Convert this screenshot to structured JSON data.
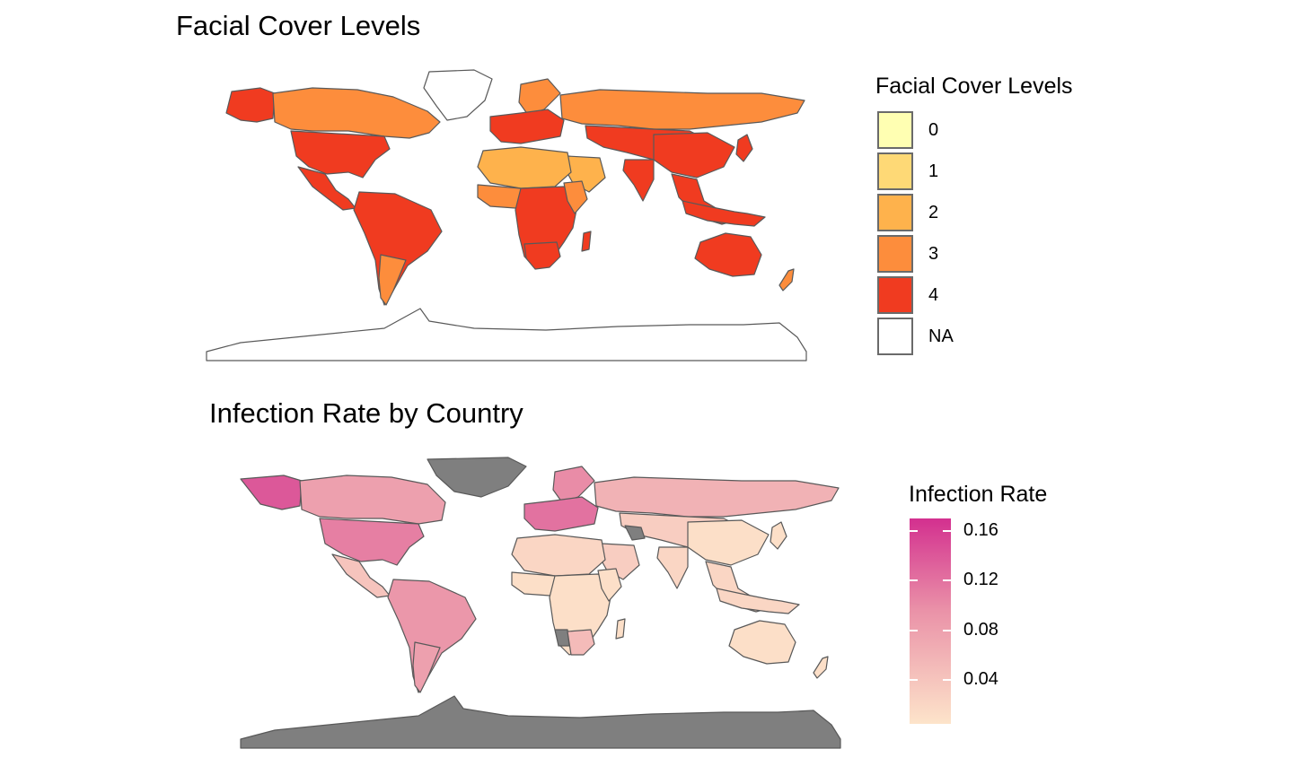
{
  "top_map": {
    "title": "Facial Cover Levels",
    "legend_title": "Facial Cover Levels",
    "legend": [
      {
        "label": "0",
        "color": "#FFFFB2"
      },
      {
        "label": "1",
        "color": "#FED976"
      },
      {
        "label": "2",
        "color": "#FEB24C"
      },
      {
        "label": "3",
        "color": "#FD8D3C"
      },
      {
        "label": "4",
        "color": "#F03B20"
      },
      {
        "label": "NA",
        "color": "#FFFFFF"
      }
    ],
    "border_color": "#595959"
  },
  "bottom_map": {
    "title": "Infection Rate by Country",
    "legend_title": "Infection Rate",
    "gradient_low_color": "#FDE4CA",
    "gradient_mid_color": "#EA92A8",
    "gradient_high_color": "#D3308F",
    "ticks": [
      {
        "label": "0.16",
        "value": 0.16
      },
      {
        "label": "0.12",
        "value": 0.12
      },
      {
        "label": "0.08",
        "value": 0.08
      },
      {
        "label": "0.04",
        "value": 0.04
      }
    ],
    "scale_min": 0.005,
    "scale_max": 0.17,
    "na_color": "#7F7F7F",
    "border_color": "#595959"
  }
}
